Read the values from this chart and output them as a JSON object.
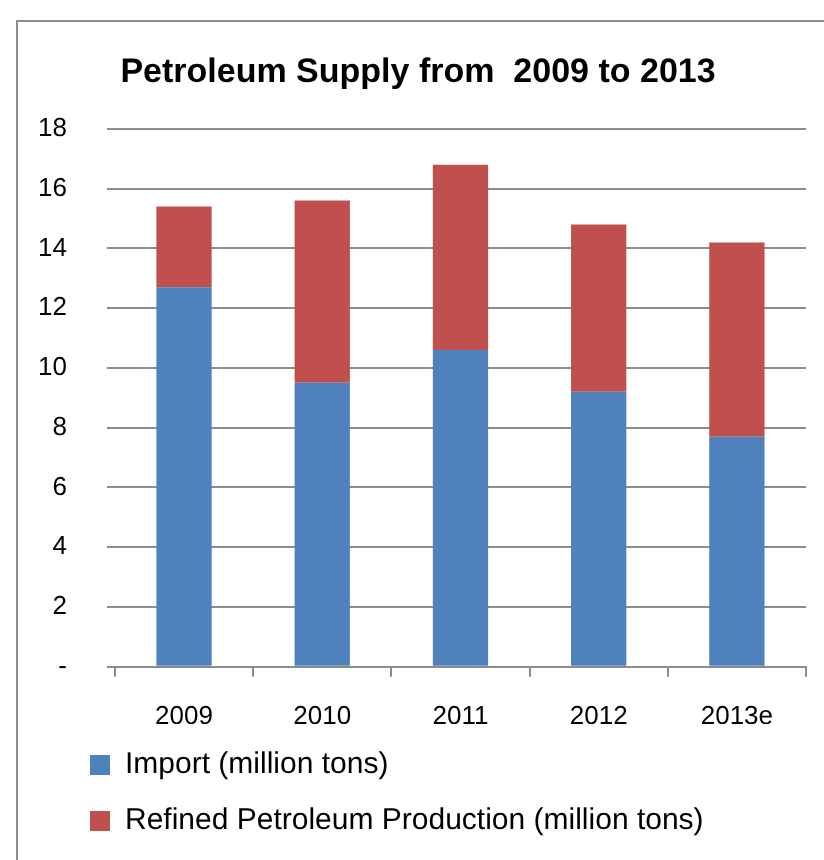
{
  "chart_data": {
    "type": "bar",
    "title": "Petroleum Supply from  2009 to 2013",
    "categories": [
      "2009",
      "2010",
      "2011",
      "2012",
      "2013e"
    ],
    "series": [
      {
        "name": "Import (million tons)",
        "color": "#4f81bd",
        "values": [
          12.7,
          9.5,
          10.6,
          9.2,
          7.7
        ]
      },
      {
        "name": "Refined Petroleum Production (million tons)",
        "color": "#c0504d",
        "values": [
          2.7,
          6.1,
          6.2,
          5.6,
          6.5
        ]
      }
    ],
    "stacked": true,
    "ylim": [
      0,
      18
    ],
    "yticks": [
      {
        "value": 0,
        "label": "-"
      },
      2,
      4,
      6,
      8,
      10,
      12,
      14,
      16,
      18
    ],
    "grid": "y",
    "legend": "bottom left"
  }
}
